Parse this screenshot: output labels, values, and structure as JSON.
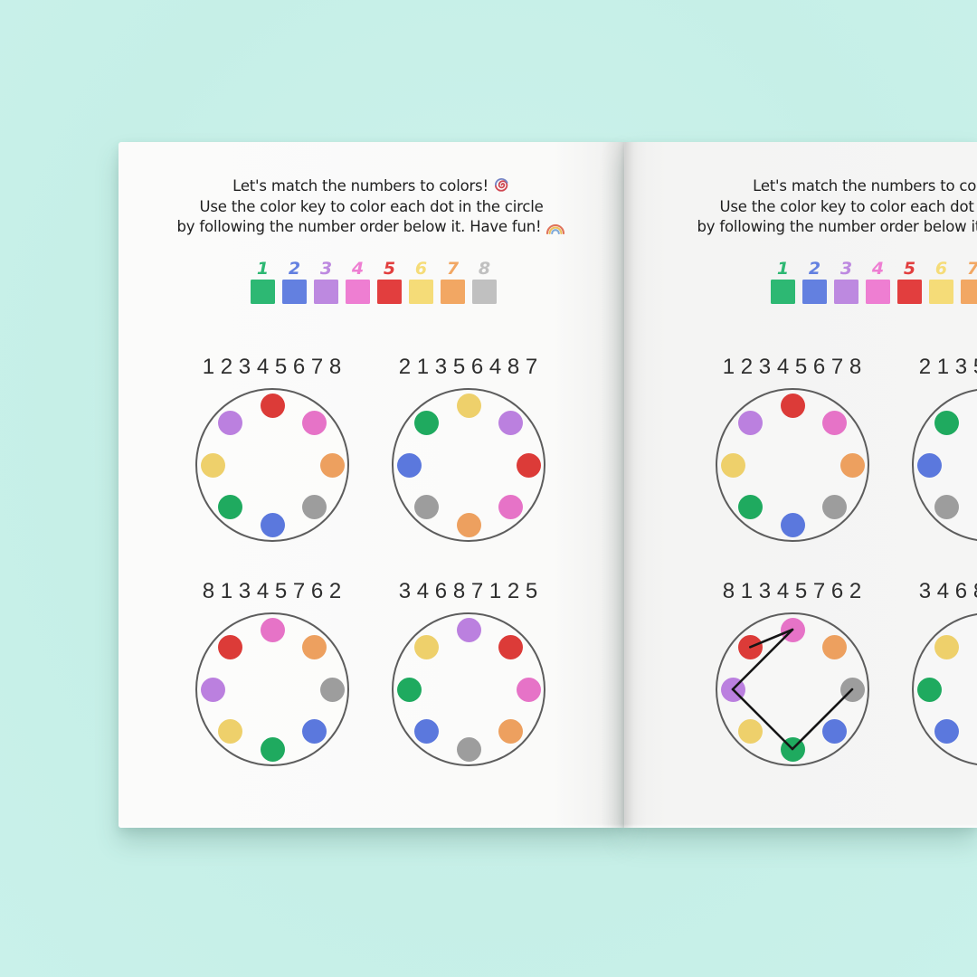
{
  "scene": {
    "background_color": "#c6efe7",
    "left_page_color": "#fafaf9",
    "right_page_color": "#f4f4f3",
    "description": "Open activity book, right page partially cut off at image edge"
  },
  "title": {
    "lines": [
      {
        "text": "Let's match the numbers to colors!",
        "icon": "swirl-icon"
      },
      {
        "text": "Use the color key to color each dot in the circle"
      },
      {
        "text": "by following the number order below it. Have fun!",
        "icon": "rainbow-icon"
      }
    ]
  },
  "color_key": {
    "items": [
      {
        "number": "1",
        "color": "green"
      },
      {
        "number": "2",
        "color": "blue"
      },
      {
        "number": "3",
        "color": "purple"
      },
      {
        "number": "4",
        "color": "pink"
      },
      {
        "number": "5",
        "color": "red"
      },
      {
        "number": "6",
        "color": "yellow"
      },
      {
        "number": "7",
        "color": "orange"
      },
      {
        "number": "8",
        "color": "gray"
      }
    ]
  },
  "palette": {
    "green": {
      "key": "#2db873",
      "dot": "#1faa5f"
    },
    "blue": {
      "key": "#6380e0",
      "dot": "#5b78dd"
    },
    "purple": {
      "key": "#bd89e0",
      "dot": "#bb80df"
    },
    "pink": {
      "key": "#ee7ed2",
      "dot": "#e673c7"
    },
    "red": {
      "key": "#e23e3e",
      "dot": "#dc3b38"
    },
    "yellow": {
      "key": "#f5dc78",
      "dot": "#eed06b"
    },
    "orange": {
      "key": "#f2a763",
      "dot": "#eda05f"
    },
    "gray": {
      "key": "#c0c0c0",
      "dot": "#9d9d9d"
    }
  },
  "dot_positions_clockwise_from_top": [
    "top",
    "top-right",
    "right",
    "bottom-right",
    "bottom",
    "bottom-left",
    "left",
    "top-left"
  ],
  "puzzles": [
    {
      "sequence": "1 2 3 4 5 6 7 8",
      "dots": [
        "red",
        "pink",
        "orange",
        "gray",
        "blue",
        "green",
        "yellow",
        "purple"
      ]
    },
    {
      "sequence": "2 1 3 5 6 4 8 7",
      "dots": [
        "yellow",
        "purple",
        "red",
        "pink",
        "orange",
        "gray",
        "blue",
        "green"
      ]
    },
    {
      "sequence": "8 1 3 4 5 7 6 2",
      "dots": [
        "pink",
        "orange",
        "gray",
        "blue",
        "green",
        "yellow",
        "purple",
        "red"
      ]
    },
    {
      "sequence": "3 4 6 8 7 1 2 5",
      "dots": [
        "purple",
        "red",
        "pink",
        "orange",
        "gray",
        "blue",
        "green",
        "yellow"
      ]
    }
  ],
  "pages": {
    "left": {
      "side": "left",
      "clipped": false
    },
    "right": {
      "side": "right",
      "clipped": true,
      "solution_lines": {
        "puzzle_index": 2,
        "line_color": "#161616",
        "connected_dot_indices": [
          [
            2,
            4
          ],
          [
            4,
            6
          ],
          [
            6,
            0
          ],
          [
            0,
            7
          ]
        ],
        "connected_colors": [
          [
            "gray",
            "green"
          ],
          [
            "green",
            "purple"
          ],
          [
            "purple",
            "pink"
          ],
          [
            "pink",
            "red"
          ]
        ]
      }
    }
  }
}
